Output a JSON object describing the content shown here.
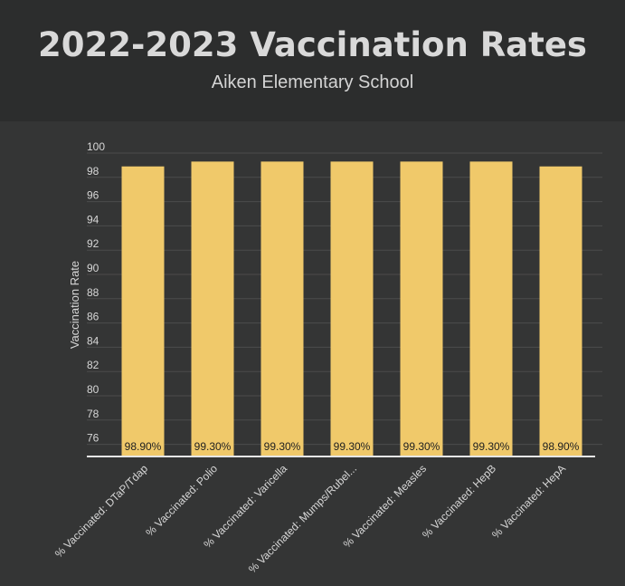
{
  "header": {
    "title": "2022-2023 Vaccination Rates",
    "subtitle": "Aiken Elementary School"
  },
  "chart_data": {
    "type": "bar",
    "title": "2022-2023 Vaccination Rates",
    "subtitle": "Aiken Elementary School",
    "xlabel": "",
    "ylabel": "Vaccination Rate",
    "ylim": [
      75,
      100
    ],
    "yticks": [
      76,
      78,
      80,
      82,
      84,
      86,
      88,
      90,
      92,
      94,
      96,
      98,
      100
    ],
    "grid": true,
    "legend": "none",
    "bar_color": "#f0c96a",
    "categories": [
      "% Vaccinated: DTaP/Tdap",
      "% Vaccinated: Polio",
      "% Vaccinated: Varicella",
      "% Vaccinated: Mumps/Rubel...",
      "% Vaccinated: Measles",
      "% Vaccinated: HepB",
      "% Vaccinated: HepA"
    ],
    "values": [
      98.9,
      99.3,
      99.3,
      99.3,
      99.3,
      99.3,
      98.9
    ],
    "data_labels": [
      "98.90%",
      "99.30%",
      "99.30%",
      "99.30%",
      "99.30%",
      "99.30%",
      "98.90%"
    ]
  }
}
